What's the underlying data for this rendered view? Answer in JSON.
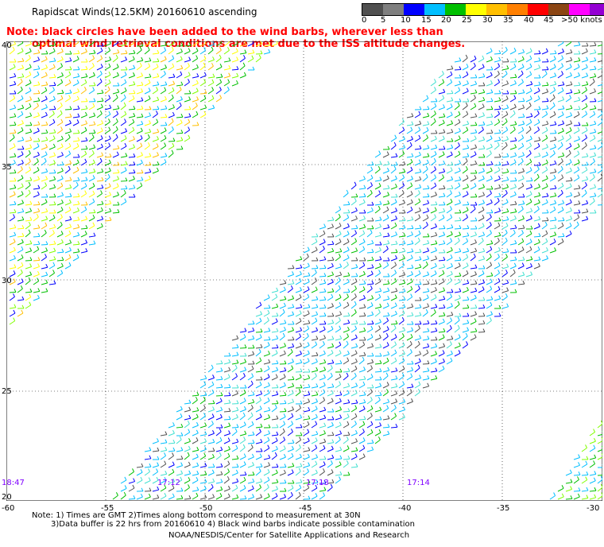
{
  "header": {
    "title": "Rapidscat Winds(12.5KM) 20160610 ascending",
    "note_line1": "Note: black circles have been added to the wind barbs, wherever less than",
    "note_line2": "optimal wind retrieval conditions are met due to the ISS altitude changes."
  },
  "colorbar": {
    "colors": [
      "#505050",
      "#7f7f7f",
      "#0000ff",
      "#00bfff",
      "#00c000",
      "#ffff00",
      "#ffbf00",
      "#ff7f00",
      "#ff0000",
      "#8b4513",
      "#ff00ff",
      "#9400d3",
      "#4b0082"
    ],
    "labels": [
      "0",
      "5",
      "10",
      "15",
      "20",
      "25",
      "30",
      "35",
      "40",
      "45",
      ">50 knots"
    ]
  },
  "axes": {
    "lon_labels": [
      "-60",
      "-55",
      "-50",
      "-45",
      "-40",
      "-35",
      "-30"
    ],
    "lat_labels": [
      "40",
      "35",
      "30",
      "25",
      "20"
    ]
  },
  "time_labels": [
    "18:47",
    "17:12",
    "17:13",
    "17:14"
  ],
  "footer": {
    "line1": "Note: 1) Times are GMT 2)Times along bottom correspond to measurement at 30N",
    "line2": "3)Data buffer is 22 hrs from 20160610 4) Black wind barbs indicate possible contamination",
    "line3": "NOAA/NESDIS/Center for Satellite Applications and Research"
  }
}
